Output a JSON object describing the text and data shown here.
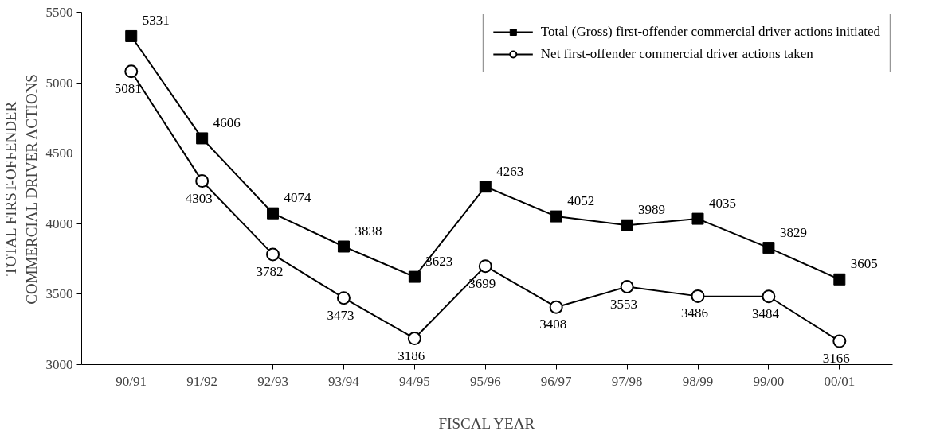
{
  "chart_data": {
    "type": "line",
    "xlabel": "FISCAL YEAR",
    "ylabel": "TOTAL FIRST-OFFENDER\nCOMMERCIAL DRIVER ACTIONS",
    "categories": [
      "90/91",
      "91/92",
      "92/93",
      "93/94",
      "94/95",
      "95/96",
      "96/97",
      "97/98",
      "98/99",
      "99/00",
      "00/01"
    ],
    "series": [
      {
        "name": "Total (Gross) first-offender commercial driver actions initiated",
        "color": "#000000",
        "marker": "square",
        "values": [
          5331,
          4606,
          4074,
          3838,
          3623,
          4263,
          4052,
          3989,
          4035,
          3829,
          3605
        ]
      },
      {
        "name": "Net first-offender commercial driver actions taken",
        "color": "#000000",
        "marker": "circle",
        "values": [
          5081,
          4303,
          3782,
          3473,
          3186,
          3699,
          3408,
          3553,
          3486,
          3484,
          3166
        ]
      }
    ],
    "ylim": [
      3000,
      5500
    ],
    "yticks": [
      3000,
      3500,
      4000,
      4500,
      5000,
      5500
    ],
    "grid": false,
    "legend": "top right",
    "data_labels": true,
    "line_style": "solid"
  }
}
